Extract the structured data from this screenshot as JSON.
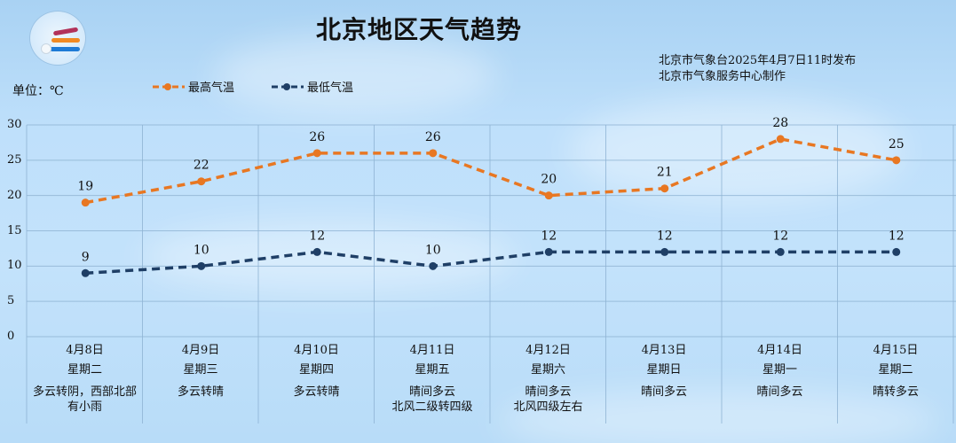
{
  "header": {
    "title": "北京地区天气趋势",
    "issuer_line1": "北京市气象台2025年4月7日11时发布",
    "issuer_line2": "北京市气象服务中心制作",
    "unit_label": "单位：℃",
    "logo_icon": "meteorological-service-logo"
  },
  "legend": {
    "high_label": "最高气温",
    "low_label": "最低气温"
  },
  "colors": {
    "high": "#e87722",
    "low": "#1f3f66",
    "grid": "#8fb3d3"
  },
  "chart_data": {
    "type": "line",
    "title": "北京地区天气趋势",
    "xlabel": "",
    "ylabel": "单位：℃",
    "ylim": [
      0,
      30
    ],
    "yticks": [
      0,
      5,
      10,
      15,
      20,
      25,
      30
    ],
    "grid": true,
    "legend_position": "top",
    "categories": [
      "4月8日",
      "4月9日",
      "4月10日",
      "4月11日",
      "4月12日",
      "4月13日",
      "4月14日",
      "4月15日"
    ],
    "series": [
      {
        "name": "最高气温",
        "values": [
          19,
          22,
          26,
          26,
          20,
          21,
          28,
          25
        ],
        "style": "dashed",
        "color": "#e87722"
      },
      {
        "name": "最低气温",
        "values": [
          9,
          10,
          12,
          10,
          12,
          12,
          12,
          12
        ],
        "style": "dashed",
        "color": "#1f3f66"
      }
    ]
  },
  "days": [
    {
      "date": "4月8日",
      "weekday": "星期二",
      "desc1": "多云转阴，西部北部",
      "desc2": "有小雨"
    },
    {
      "date": "4月9日",
      "weekday": "星期三",
      "desc1": "多云转晴",
      "desc2": ""
    },
    {
      "date": "4月10日",
      "weekday": "星期四",
      "desc1": "多云转晴",
      "desc2": ""
    },
    {
      "date": "4月11日",
      "weekday": "星期五",
      "desc1": "晴间多云",
      "desc2": "北风二级转四级"
    },
    {
      "date": "4月12日",
      "weekday": "星期六",
      "desc1": "晴间多云",
      "desc2": "北风四级左右"
    },
    {
      "date": "4月13日",
      "weekday": "星期日",
      "desc1": "晴间多云",
      "desc2": ""
    },
    {
      "date": "4月14日",
      "weekday": "星期一",
      "desc1": "晴间多云",
      "desc2": ""
    },
    {
      "date": "4月15日",
      "weekday": "星期二",
      "desc1": "晴转多云",
      "desc2": ""
    }
  ]
}
